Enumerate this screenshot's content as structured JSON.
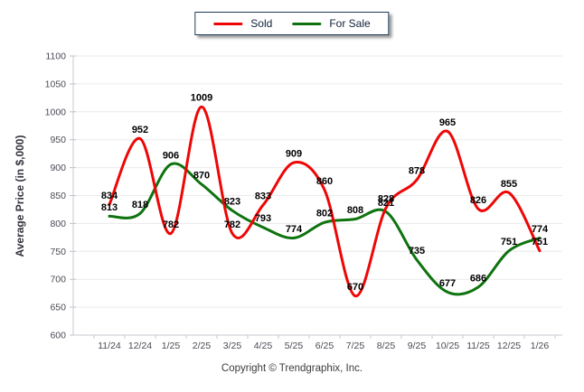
{
  "legend": {
    "items": [
      {
        "label": "Sold",
        "color": "#ee0606"
      },
      {
        "label": "For Sale",
        "color": "#0e730e"
      }
    ]
  },
  "footer": {
    "copyright": "Copyright © Trendgraphix, Inc."
  },
  "chart_data": {
    "type": "line",
    "title": "",
    "categories": [
      "11/24",
      "12/24",
      "1/25",
      "2/25",
      "3/25",
      "4/25",
      "5/25",
      "6/25",
      "7/25",
      "8/25",
      "9/25",
      "10/25",
      "11/25",
      "12/25",
      "1/26"
    ],
    "series": [
      {
        "name": "Sold",
        "color": "#ee0606",
        "values": [
          834,
          952,
          782,
          1009,
          782,
          833,
          909,
          860,
          670,
          828,
          878,
          965,
          826,
          855,
          751
        ]
      },
      {
        "name": "For Sale",
        "color": "#0e730e",
        "values": [
          813,
          818,
          906,
          870,
          823,
          793,
          774,
          802,
          808,
          821,
          735,
          677,
          686,
          751,
          774
        ]
      }
    ],
    "xlabel": "",
    "ylabel": "Average Price (in $,000)",
    "ylim": [
      600,
      1100
    ],
    "ytick_step": 50,
    "grid": true,
    "legend_position": "top-center",
    "data_labels": true,
    "colors": {
      "gridline": "#eaeaec",
      "axis": "#c9c9d1",
      "tick_stub": "#bfbfc7",
      "tick_label": "#4a4a55",
      "data_label": "#000000"
    }
  }
}
